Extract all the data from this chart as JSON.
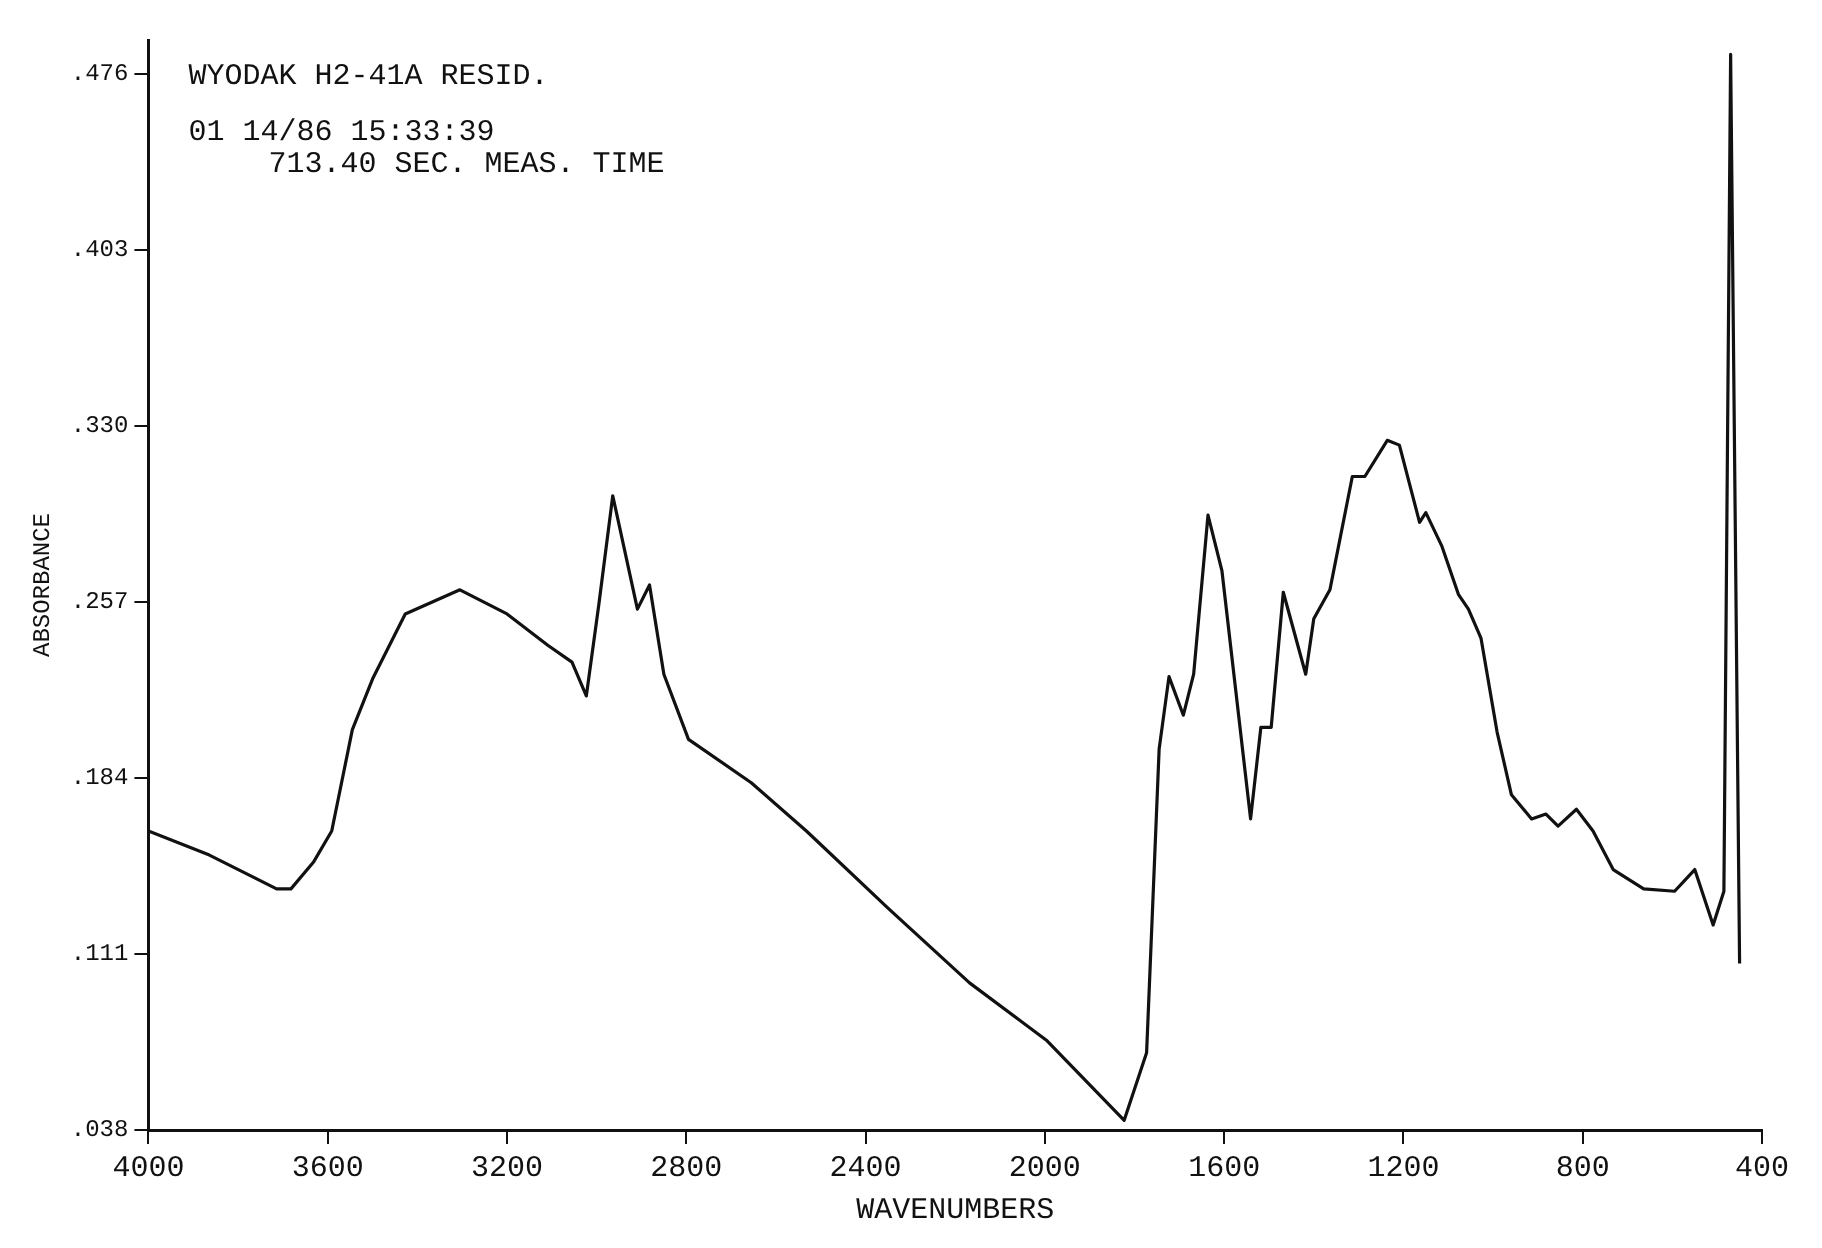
{
  "chart_data": {
    "type": "line",
    "title": "WYODAK H2-41A RESID.",
    "annotations": [
      "01 14/86 15:33:39",
      "713.40 SEC. MEAS. TIME"
    ],
    "xlabel": "WAVENUMBERS",
    "ylabel": "ABSORBANCE",
    "x": [
      4000,
      3864,
      3714,
      3682,
      3632,
      3591,
      3545,
      3500,
      3427,
      3305,
      3200,
      3109,
      3055,
      3023,
      2995,
      2964,
      2909,
      2882,
      2850,
      2795,
      2655,
      2532,
      2350,
      2168,
      1995,
      1823,
      1773,
      1745,
      1723,
      1691,
      1668,
      1636,
      1605,
      1541,
      1518,
      1495,
      1468,
      1418,
      1400,
      1364,
      1314,
      1286,
      1236,
      1209,
      1164,
      1150,
      1114,
      1077,
      1055,
      1027,
      991,
      959,
      914,
      882,
      855,
      814,
      777,
      732,
      664,
      595,
      550,
      509,
      485,
      470,
      450
    ],
    "series": [
      {
        "color": "#111111",
        "values": [
          0.162,
          0.152,
          0.138,
          0.138,
          0.149,
          0.162,
          0.204,
          0.225,
          0.252,
          0.262,
          0.252,
          0.239,
          0.232,
          0.218,
          0.256,
          0.301,
          0.254,
          0.264,
          0.227,
          0.2,
          0.182,
          0.162,
          0.13,
          0.099,
          0.075,
          0.042,
          0.07,
          0.196,
          0.226,
          0.21,
          0.227,
          0.293,
          0.27,
          0.167,
          0.205,
          0.205,
          0.261,
          0.227,
          0.25,
          0.262,
          0.309,
          0.309,
          0.324,
          0.322,
          0.29,
          0.294,
          0.28,
          0.26,
          0.254,
          0.242,
          0.203,
          0.177,
          0.167,
          0.169,
          0.164,
          0.171,
          0.162,
          0.146,
          0.138,
          0.137,
          0.146,
          0.123,
          0.137,
          0.484,
          0.107
        ]
      }
    ],
    "xlim": [
      4000,
      400
    ],
    "xticks": [
      4000,
      3600,
      3200,
      2800,
      2400,
      2000,
      1600,
      1200,
      800,
      400
    ],
    "ylim": [
      0.038,
      0.49
    ],
    "yticks": [
      {
        "value": 0.038,
        "label": ".038"
      },
      {
        "value": 0.111,
        "label": ".111"
      },
      {
        "value": 0.184,
        "label": ".184"
      },
      {
        "value": 0.257,
        "label": ".257"
      },
      {
        "value": 0.33,
        "label": ".330"
      },
      {
        "value": 0.403,
        "label": ".403"
      },
      {
        "value": 0.476,
        "label": ".476"
      }
    ],
    "grid": false,
    "legend": false,
    "marker": "none",
    "line_style": "solid"
  }
}
